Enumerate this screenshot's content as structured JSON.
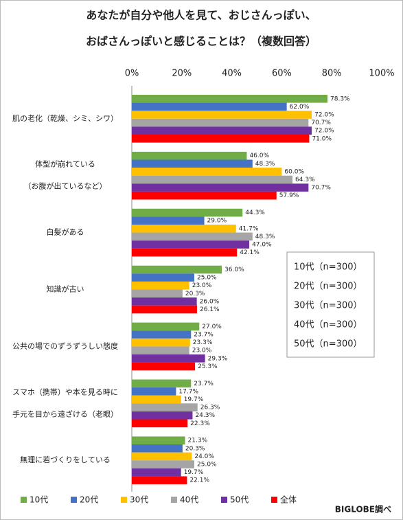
{
  "chart_data": {
    "type": "bar",
    "orientation": "horizontal",
    "title": [
      "あなたが自分や他人を見て、おじさんっぽい、",
      "おばさんっぽいと感じることは？（複数回答）"
    ],
    "categories": [
      [
        "肌の老化（乾燥、シミ、シワ）"
      ],
      [
        "体型が崩れている",
        "（お腹が出ているなど）"
      ],
      [
        "白髪がある"
      ],
      [
        "知識が古い"
      ],
      [
        "公共の場でのずうずうしい態度"
      ],
      [
        "スマホ（携帯）や本を見る時に",
        "手元を目から遠ざける（老眼）"
      ],
      [
        "無理に若づくりをしている"
      ]
    ],
    "series": [
      {
        "name": "10代",
        "color": "#70ad47",
        "values": [
          78.3,
          46.0,
          44.3,
          36.0,
          27.0,
          23.7,
          21.3
        ],
        "value_labels": [
          "78.3%",
          "46.0%",
          "44.3%",
          "36.0%",
          "27.0%",
          "23.7%",
          "21.3%"
        ]
      },
      {
        "name": "20代",
        "color": "#4472c4",
        "values": [
          62.0,
          48.3,
          29.0,
          25.0,
          23.7,
          17.7,
          20.3
        ],
        "value_labels": [
          "62.0%",
          "48.3%",
          "29.0%",
          "25.0%",
          "23.7%",
          "17.7%",
          "20.3%"
        ]
      },
      {
        "name": "30代",
        "color": "#ffc000",
        "values": [
          72.0,
          60.0,
          41.7,
          23.0,
          23.3,
          19.7,
          24.0
        ],
        "value_labels": [
          "72.0%",
          "60.0%",
          "41.7%",
          "23.0%",
          "23.3%",
          "19.7%",
          "24.0%"
        ]
      },
      {
        "name": "40代",
        "color": "#a5a5a5",
        "values": [
          70.7,
          64.3,
          48.3,
          20.3,
          23.0,
          26.3,
          25.0
        ],
        "value_labels": [
          "70.7%",
          "64.3%",
          "48.3%",
          "20.3%",
          "23.0%",
          "26.3%",
          "25.0%"
        ]
      },
      {
        "name": "50代",
        "color": "#7030a0",
        "values": [
          72.0,
          70.7,
          47.0,
          26.0,
          29.3,
          24.3,
          19.7
        ],
        "value_labels": [
          "72.0%",
          "70.7%",
          "47.0%",
          "26.0%",
          "29.3%",
          "24.3%",
          "19.7%"
        ]
      },
      {
        "name": "全体",
        "color": "#ff0000",
        "values": [
          71.0,
          57.9,
          42.1,
          26.1,
          25.3,
          22.3,
          22.1
        ],
        "value_labels": [
          "71.0%",
          "57.9%",
          "42.1%",
          "26.1%",
          "25.3%",
          "22.3%",
          "22.1%"
        ]
      }
    ],
    "xlim": [
      0,
      100
    ],
    "xticks": [
      {
        "value": 0,
        "label": "0%"
      },
      {
        "value": 20,
        "label": "20%"
      },
      {
        "value": 40,
        "label": "40%"
      },
      {
        "value": 60,
        "label": "60%"
      },
      {
        "value": 80,
        "label": "80%"
      },
      {
        "value": 100,
        "label": "100%"
      }
    ],
    "annotation_box": [
      "10代（n=300）",
      "20代（n=300）",
      "30代（n=300）",
      "40代（n=300）",
      "50代（n=300）"
    ],
    "source": "BIGLOBE調べ",
    "legend": "bottom"
  }
}
